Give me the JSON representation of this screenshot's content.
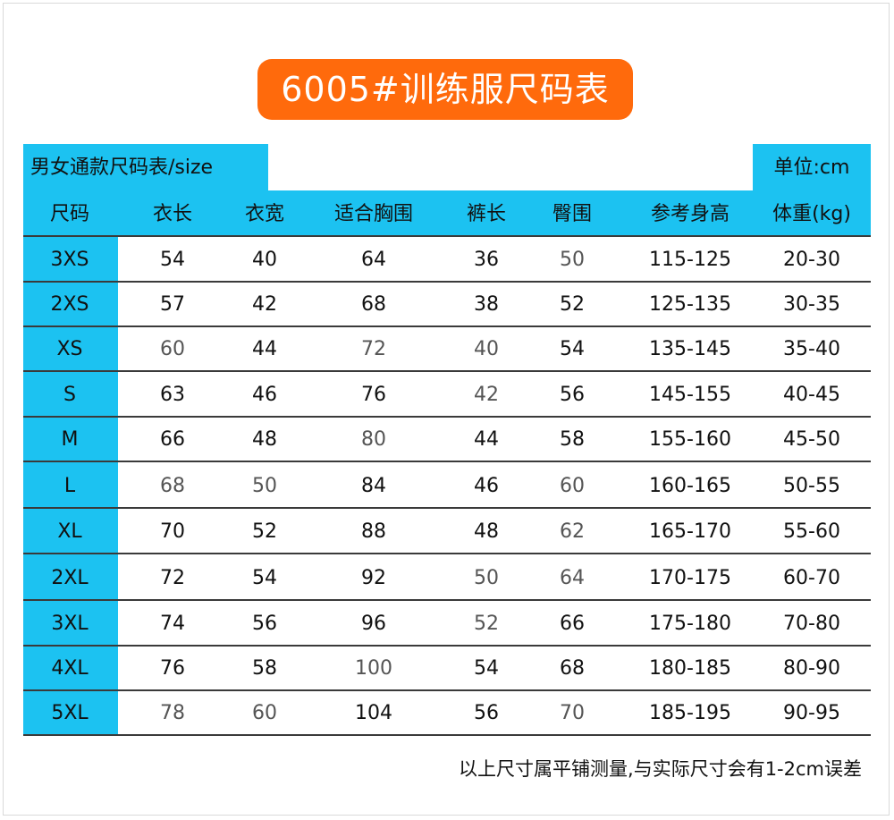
{
  "title": "6005#训练服尺码表",
  "subheader": {
    "left": "男女通款尺码表/size",
    "right": "单位:cm"
  },
  "columns": [
    "尺码",
    "衣长",
    "衣宽",
    "适合胸围",
    "裤长",
    "臀围",
    "参考身高",
    "体重(kg)"
  ],
  "rows": [
    [
      "3XS",
      "54",
      "40",
      "64",
      "36",
      "50",
      "115-125",
      "20-30"
    ],
    [
      "2XS",
      "57",
      "42",
      "68",
      "38",
      "52",
      "125-135",
      "30-35"
    ],
    [
      "XS",
      "60",
      "44",
      "72",
      "40",
      "54",
      "135-145",
      "35-40"
    ],
    [
      "S",
      "63",
      "46",
      "76",
      "42",
      "56",
      "145-155",
      "40-45"
    ],
    [
      "M",
      "66",
      "48",
      "80",
      "44",
      "58",
      "155-160",
      "45-50"
    ],
    [
      "L",
      "68",
      "50",
      "84",
      "46",
      "60",
      "160-165",
      "50-55"
    ],
    [
      "XL",
      "70",
      "52",
      "88",
      "48",
      "62",
      "165-170",
      "55-60"
    ],
    [
      "2XL",
      "72",
      "54",
      "92",
      "50",
      "64",
      "170-175",
      "60-70"
    ],
    [
      "3XL",
      "74",
      "56",
      "96",
      "52",
      "66",
      "175-180",
      "70-80"
    ],
    [
      "4XL",
      "76",
      "58",
      "100",
      "54",
      "68",
      "180-185",
      "80-90"
    ],
    [
      "5XL",
      "78",
      "60",
      "104",
      "56",
      "70",
      "185-195",
      "90-95"
    ]
  ],
  "footer_note": "以上尺寸属平铺测量,与实际尺寸会有1-2cm误差",
  "colors": {
    "accent_orange": "#ff6a0c",
    "accent_cyan": "#1cc2f1",
    "rule": "#3a3a3a"
  }
}
